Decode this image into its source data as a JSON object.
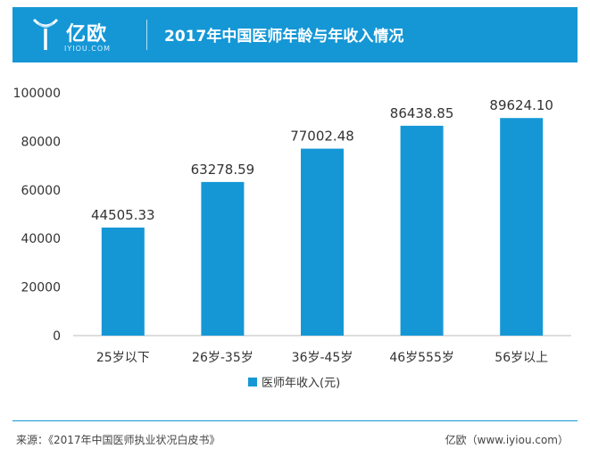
{
  "header": {
    "logo_text": "亿欧",
    "logo_sub": "IYIOU.COM",
    "title": "2017年中国医师年龄与年收入情况"
  },
  "colors": {
    "header_bg": "#1597d6",
    "bar": "#1597d6"
  },
  "chart_data": {
    "type": "bar",
    "title": "2017年中国医师年龄与年收入情况",
    "categories": [
      "25岁以下",
      "26岁-35岁",
      "36岁-45岁",
      "46岁555岁",
      "56岁以上"
    ],
    "series": [
      {
        "name": "医师年收入(元)",
        "values": [
          44505.33,
          63278.59,
          77002.48,
          86438.85,
          89624.1
        ],
        "labels": [
          "44505.33",
          "63278.59",
          "77002.48",
          "86438.85",
          "89624.10"
        ]
      }
    ],
    "ylim": [
      0,
      100000
    ],
    "yticks": [
      0,
      20000,
      40000,
      60000,
      80000,
      100000
    ],
    "grid": false,
    "legend": "bottom"
  },
  "footer": {
    "source": "来源：《2017年中国医师执业状况白皮书》",
    "brand": "亿欧（www.iyiou.com）"
  }
}
